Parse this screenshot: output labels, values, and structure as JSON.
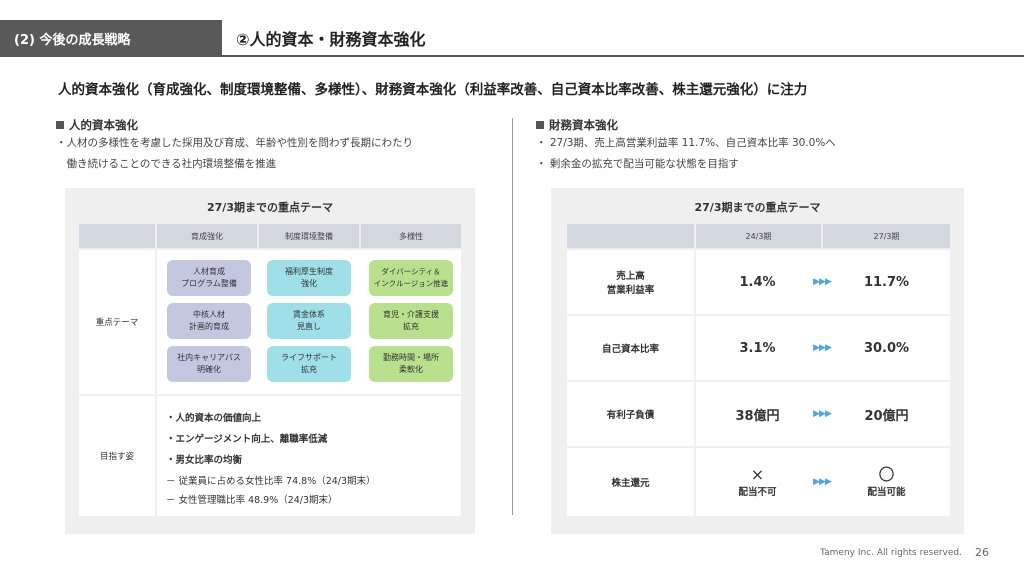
{
  "header": {
    "section_tag": "(2) 今後の成長戦略",
    "title": "②人的資本・財務資本強化"
  },
  "headline": "人的資本強化（育成強化、制度環境整備、多様性）、財務資本強化（利益率改善、自己資本比率改善、株主還元強化）に注力",
  "left": {
    "heading": "人的資本強化",
    "bullets": [
      "・人材の多様性を考慮した採用及び育成、年齢や性別を問わず長期にわたり",
      "　働き続けることのできる社内環境整備を推進"
    ],
    "panel_title": "27/3期までの重点テーマ",
    "col_headers": [
      "育成強化",
      "制度環境整備",
      "多様性"
    ],
    "row_labels": [
      "重点テーマ",
      "目指す姿"
    ],
    "chips": {
      "c1": [
        "人材育成\nプログラム整備",
        "中核人材\n計画的育成",
        "社内キャリアパス\n明確化"
      ],
      "c2": [
        "福利厚生制度\n強化",
        "賃金体系\n見直し",
        "ライフサポート\n拡充"
      ],
      "c3": [
        "ダイバーシティ＆\nインクルージョン推進",
        "育児・介護支援\n拡充",
        "勤務時間・場所\n柔軟化"
      ]
    },
    "goals": [
      "・人的資本の価値向上",
      "・エンゲージメント向上、離職率低減",
      "・男女比率の均衡",
      "－ 従業員に占める女性比率 74.8%（24/3期末）",
      "－ 女性管理職比率 48.9%（24/3期末）"
    ]
  },
  "right": {
    "heading": "財務資本強化",
    "bullets": [
      "・ 27/3期、売上高営業利益率 11.7%、自己資本比率 30.0%へ",
      "・ 剰余金の拡充で配当可能な状態を目指す"
    ],
    "panel_title": "27/3期までの重点テーマ",
    "col_headers": [
      "24/3期",
      "27/3期"
    ],
    "arrow_glyph": "▶▶▶",
    "rows": [
      {
        "label": "売上高\n営業利益率",
        "from": "1.4%",
        "to": "11.7%"
      },
      {
        "label": "自己資本比率",
        "from": "3.1%",
        "to": "30.0%"
      },
      {
        "label": "有利子負債",
        "from": "38億円",
        "to": "20億円"
      },
      {
        "label": "株主還元",
        "from_mark": "×",
        "from": "配当不可",
        "to_mark": "〇",
        "to": "配当可能"
      }
    ]
  },
  "footer": {
    "copyright": "Tameny Inc. All rights reserved.",
    "page": "26"
  }
}
